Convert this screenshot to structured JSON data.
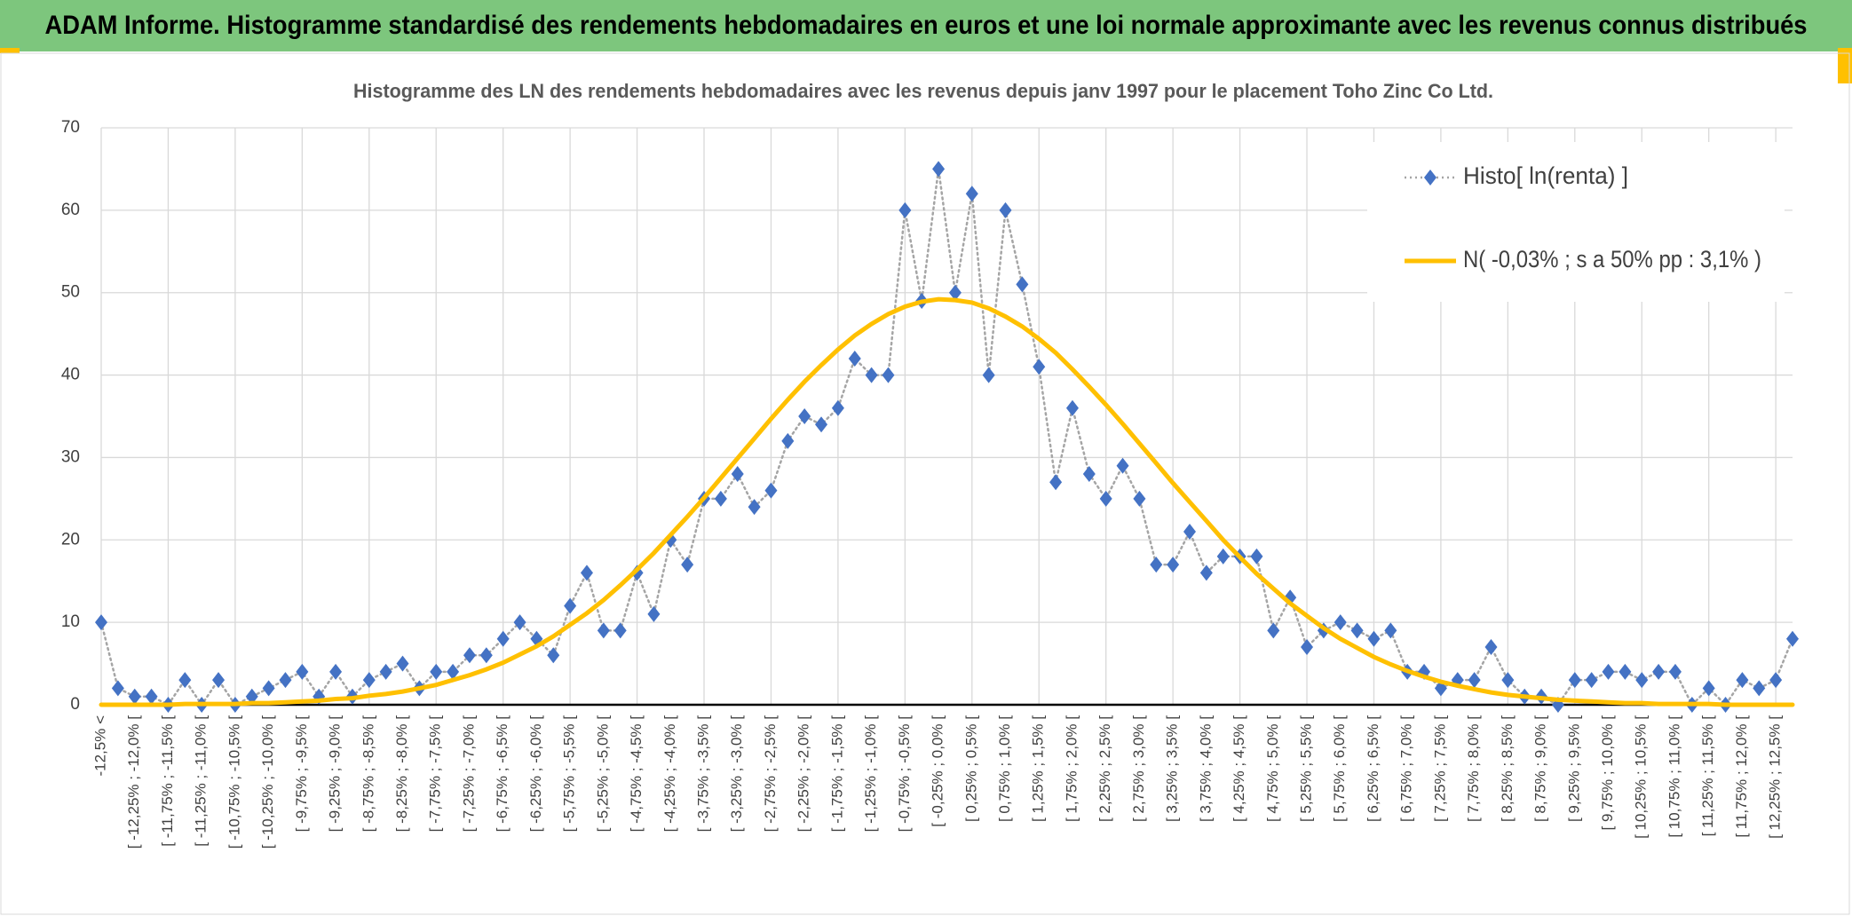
{
  "header": {
    "title": "ADAM Informe. Histogramme standardisé des rendements hebdomadaires en euros et une loi normale approximante avec les revenus connus distribués"
  },
  "chart_data": {
    "type": "line",
    "title": "Histogramme des LN des rendements hebdomadaires avec les revenus depuis janv 1997 pour le placement Toho Zinc Co Ltd.",
    "categories": [
      "-12,5% <",
      null,
      "[ -12,25% ; -12,0% [",
      null,
      "[ -11,75% ; -11,5% [",
      null,
      "[ -11,25% ; -11,0% [",
      null,
      "[ -10,75% ; -10,5% [",
      null,
      "[ -10,25% ; -10,0% [",
      null,
      "[ -9,75% ; -9,5% [",
      null,
      "[ -9,25% ; -9,0% [",
      null,
      "[ -8,75% ; -8,5% [",
      null,
      "[ -8,25% ; -8,0% [",
      null,
      "[ -7,75% ; -7,5% [",
      null,
      "[ -7,25% ; -7,0% [",
      null,
      "[ -6,75% ; -6,5% [",
      null,
      "[ -6,25% ; -6,0% [",
      null,
      "[ -5,75% ; -5,5% [",
      null,
      "[ -5,25% ; -5,0% [",
      null,
      "[ -4,75% ; -4,5% [",
      null,
      "[ -4,25% ; -4,0% [",
      null,
      "[ -3,75% ; -3,5% [",
      null,
      "[ -3,25% ; -3,0% [",
      null,
      "[ -2,75% ; -2,5% [",
      null,
      "[ -2,25% ; -2,0% [",
      null,
      "[ -1,75% ; -1,5% [",
      null,
      "[ -1,25% ; -1,0% [",
      null,
      "[ -0,75% ; -0,5% [",
      null,
      "[ -0,25% ; 0,0% [",
      null,
      "[ 0,25% ; 0,5% [",
      null,
      "[ 0,75% ; 1,0% [",
      null,
      "[ 1,25% ; 1,5% [",
      null,
      "[ 1,75% ; 2,0% [",
      null,
      "[ 2,25% ; 2,5% [",
      null,
      "[ 2,75% ; 3,0% [",
      null,
      "[ 3,25% ; 3,5% [",
      null,
      "[ 3,75% ; 4,0% [",
      null,
      "[ 4,25% ; 4,5% [",
      null,
      "[ 4,75% ; 5,0% [",
      null,
      "[ 5,25% ; 5,5% [",
      null,
      "[ 5,75% ; 6,0% [",
      null,
      "[ 6,25% ; 6,5% [",
      null,
      "[ 6,75% ; 7,0% [",
      null,
      "[ 7,25% ; 7,5% [",
      null,
      "[ 7,75% ; 8,0% [",
      null,
      "[ 8,25% ; 8,5% [",
      null,
      "[ 8,75% ; 9,0% [",
      null,
      "[ 9,25% ; 9,5% [",
      null,
      "[ 9,75% ; 10,0% [",
      null,
      "[ 10,25% ; 10,5% [",
      null,
      "[ 10,75% ; 11,0% [",
      null,
      "[ 11,25% ; 11,5% [",
      null,
      "[ 11,75% ; 12,0% [",
      null,
      "[ 12,25% ; 12,5% [",
      null
    ],
    "series": [
      {
        "name": "Histo[ ln(renta) ]",
        "color": "#4472c4",
        "line_color": "#a5a5a5",
        "marker": "diamond",
        "values": [
          10,
          2,
          1,
          1,
          0,
          3,
          0,
          3,
          0,
          1,
          2,
          3,
          4,
          1,
          4,
          1,
          3,
          4,
          5,
          2,
          4,
          4,
          6,
          6,
          8,
          10,
          8,
          6,
          12,
          16,
          9,
          9,
          16,
          11,
          20,
          17,
          25,
          25,
          28,
          24,
          26,
          32,
          35,
          34,
          36,
          42,
          40,
          40,
          60,
          49,
          65,
          50,
          62,
          40,
          60,
          51,
          41,
          27,
          36,
          28,
          25,
          29,
          25,
          17,
          17,
          21,
          16,
          18,
          18,
          18,
          9,
          13,
          7,
          9,
          10,
          9,
          8,
          9,
          4,
          4,
          2,
          3,
          3,
          7,
          3,
          1,
          1,
          0,
          3,
          3,
          4,
          4,
          3,
          4,
          4,
          0,
          2,
          0,
          3,
          2,
          3,
          8
        ]
      },
      {
        "name": "N( -0,03% ; s a 50% pp : 3,1% )",
        "color": "#ffc000",
        "values": [
          0,
          0,
          0,
          0,
          0,
          0.1,
          0.1,
          0.1,
          0.1,
          0.2,
          0.2,
          0.3,
          0.4,
          0.5,
          0.7,
          0.8,
          1.1,
          1.3,
          1.6,
          2.0,
          2.4,
          3.0,
          3.6,
          4.3,
          5.1,
          6.1,
          7.1,
          8.3,
          9.7,
          11.1,
          12.7,
          14.5,
          16.4,
          18.4,
          20.6,
          22.8,
          25.1,
          27.5,
          29.9,
          32.3,
          34.7,
          37.0,
          39.2,
          41.2,
          43.1,
          44.8,
          46.2,
          47.4,
          48.3,
          48.9,
          49.2,
          49.1,
          48.8,
          48.1,
          47.1,
          45.9,
          44.4,
          42.7,
          40.7,
          38.6,
          36.4,
          34.1,
          31.7,
          29.3,
          26.9,
          24.6,
          22.3,
          20.0,
          17.9,
          15.9,
          14.1,
          12.3,
          10.8,
          9.3,
          8.0,
          6.9,
          5.8,
          4.9,
          4.1,
          3.4,
          2.8,
          2.3,
          1.9,
          1.5,
          1.2,
          1.0,
          0.8,
          0.6,
          0.5,
          0.4,
          0.3,
          0.2,
          0.2,
          0.1,
          0.1,
          0.1,
          0.1,
          0,
          0,
          0,
          0,
          0
        ]
      }
    ],
    "ylim": [
      0,
      70
    ],
    "yticks": [
      0,
      10,
      20,
      30,
      40,
      50,
      60,
      70
    ],
    "grid": true,
    "legend": "upper right"
  }
}
